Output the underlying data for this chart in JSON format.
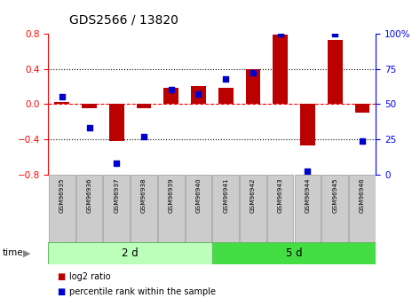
{
  "title": "GDS2566 / 13820",
  "samples": [
    "GSM96935",
    "GSM96936",
    "GSM96937",
    "GSM96938",
    "GSM96939",
    "GSM96940",
    "GSM96941",
    "GSM96942",
    "GSM96943",
    "GSM96944",
    "GSM96945",
    "GSM96946"
  ],
  "log2_ratio": [
    0.02,
    -0.05,
    -0.42,
    -0.05,
    0.18,
    0.2,
    0.18,
    0.4,
    0.79,
    -0.47,
    0.73,
    -0.1
  ],
  "percentile_rank": [
    55,
    33,
    8,
    27,
    60,
    57,
    68,
    72,
    100,
    2,
    100,
    24
  ],
  "groups": [
    {
      "label": "2 d",
      "start": 0,
      "end": 6,
      "color": "#bbffbb"
    },
    {
      "label": "5 d",
      "start": 6,
      "end": 12,
      "color": "#44dd44"
    }
  ],
  "bar_color": "#bb0000",
  "dot_color": "#0000cc",
  "ylim_left": [
    -0.8,
    0.8
  ],
  "ylim_right": [
    0,
    100
  ],
  "yticks_left": [
    -0.8,
    -0.4,
    0.0,
    0.4,
    0.8
  ],
  "yticks_right": [
    0,
    25,
    50,
    75,
    100
  ],
  "hlines": [
    -0.4,
    0.0,
    0.4
  ],
  "background_color": "#ffffff",
  "label_log2": "log2 ratio",
  "label_pct": "percentile rank within the sample",
  "sample_box_color": "#cccccc",
  "sample_box_edge": "#999999"
}
